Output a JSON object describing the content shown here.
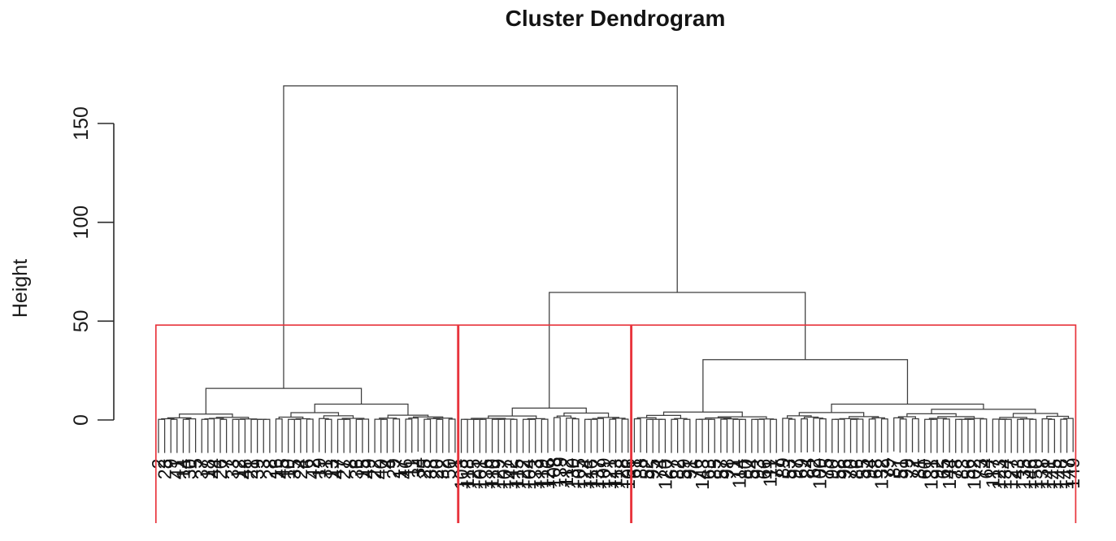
{
  "page": {
    "background": "#ffffff"
  },
  "chart_data": {
    "type": "dendrogram",
    "title": "Cluster Dendrogram",
    "y_axis": {
      "label": "Height",
      "ticks": [
        0,
        50,
        100,
        150
      ]
    },
    "grid": false,
    "legend": false,
    "leaf_count": 149,
    "leaf_label_rotation_degrees": 90,
    "linkage": {
      "root_height": 169,
      "secondary_merge_height": 64.5,
      "hang_below_zero": 17,
      "clusters": [
        {
          "name": "cluster-1",
          "size": 49,
          "top_height": 16,
          "split": [
            {
              "n": 19,
              "h": 3
            },
            {
              "n": 30,
              "h": 8
            }
          ],
          "labels": [
            "2",
            "23",
            "9",
            "41",
            "14",
            "30",
            "5",
            "37",
            "18",
            "44",
            "26",
            "7",
            "33",
            "12",
            "48",
            "21",
            "39",
            "3",
            "28",
            "16",
            "45",
            "10",
            "35",
            "24",
            "6",
            "42",
            "19",
            "31",
            "13",
            "47",
            "27",
            "8",
            "36",
            "15",
            "49",
            "22",
            "40",
            "4",
            "29",
            "17",
            "46",
            "11",
            "34",
            "25",
            "38",
            "20",
            "32",
            "50",
            "1"
          ]
        },
        {
          "name": "cluster-2",
          "size": 28,
          "top_height": 6,
          "split": [
            {
              "n": 15,
              "h": 2
            },
            {
              "n": 13,
              "h": 3.5
            }
          ],
          "labels": [
            "103",
            "118",
            "125",
            "101",
            "136",
            "110",
            "129",
            "107",
            "142",
            "115",
            "122",
            "104",
            "133",
            "119",
            "126",
            "108",
            "139",
            "112",
            "130",
            "105",
            "124",
            "116",
            "137",
            "109",
            "121",
            "113",
            "128",
            "106"
          ]
        },
        {
          "name": "cluster-3",
          "size": 72,
          "top_height": 30.5,
          "split": [
            {
              "n": 24,
              "h": 4
            },
            {
              "n": 48,
              "h": 8
            }
          ],
          "labels": [
            "61",
            "88",
            "52",
            "95",
            "74",
            "120",
            "67",
            "82",
            "59",
            "91",
            "76",
            "143",
            "63",
            "85",
            "57",
            "98",
            "71",
            "114",
            "80",
            "54",
            "93",
            "66",
            "111",
            "77",
            "89",
            "53",
            "97",
            "69",
            "84",
            "62",
            "100",
            "75",
            "90",
            "58",
            "96",
            "70",
            "86",
            "55",
            "94",
            "68",
            "132",
            "79",
            "87",
            "51",
            "99",
            "72",
            "81",
            "60",
            "131",
            "92",
            "65",
            "144",
            "78",
            "83",
            "56",
            "102",
            "73",
            "64",
            "117",
            "123",
            "134",
            "127",
            "43",
            "135",
            "146",
            "150",
            "138",
            "141",
            "145",
            "148",
            "147",
            "149"
          ]
        }
      ]
    },
    "cluster_boxes": {
      "count": 3,
      "cut_height": 48,
      "color": "#e8343c"
    }
  },
  "style": {
    "line_color": "#3d3d3d",
    "text_color": "#141414",
    "box_color": "#e8343c",
    "background": "#ffffff"
  }
}
